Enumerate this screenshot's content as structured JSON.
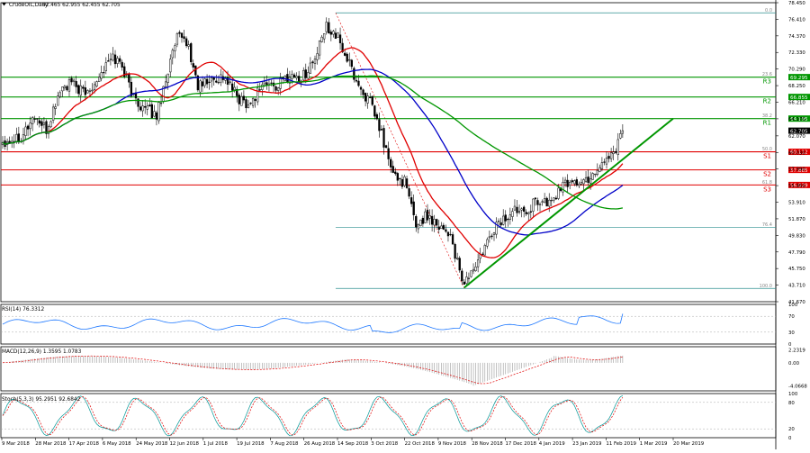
{
  "title": {
    "symbol": "CrudeOIL,Daily",
    "ohlc": "62.465 62.955 62.455 62.705"
  },
  "chart_data": [
    {
      "type": "candlestick",
      "panel": "price",
      "y_ticks": [
        "78.450",
        "76.410",
        "74.370",
        "72.330",
        "70.290",
        "68.250",
        "66.210",
        "64.170",
        "62.070",
        "60.030",
        "57.990",
        "55.950",
        "53.910",
        "51.870",
        "49.830",
        "47.790",
        "45.750",
        "43.710",
        "41.670"
      ],
      "ylim": [
        41.67,
        78.45
      ],
      "x_ticks": [
        "9 Mar 2018",
        "28 Mar 2018",
        "17 Apr 2018",
        "6 May 2018",
        "24 May 2018",
        "12 Jun 2018",
        "1 Jul 2018",
        "19 Jul 2018",
        "7 Aug 2018",
        "26 Aug 2018",
        "14 Sep 2018",
        "3 Oct 2018",
        "22 Oct 2018",
        "9 Nov 2018",
        "28 Nov 2018",
        "17 Dec 2018",
        "4 Jan 2019",
        "23 Jan 2019",
        "11 Feb 2019",
        "1 Mar 2019",
        "20 Mar 2019"
      ],
      "last_price": {
        "label": "62.705",
        "value": 62.705
      },
      "anchors": [
        {
          "x": 0,
          "v": 61.4
        },
        {
          "x": 8,
          "v": 62.1
        },
        {
          "x": 14,
          "v": 64.5
        },
        {
          "x": 19,
          "v": 62.6
        },
        {
          "x": 25,
          "v": 67.7
        },
        {
          "x": 30,
          "v": 68.5
        },
        {
          "x": 36,
          "v": 67.2
        },
        {
          "x": 42,
          "v": 69.5
        },
        {
          "x": 48,
          "v": 71.8
        },
        {
          "x": 52,
          "v": 70.8
        },
        {
          "x": 57,
          "v": 66.8
        },
        {
          "x": 62,
          "v": 65.3
        },
        {
          "x": 67,
          "v": 64.6
        },
        {
          "x": 72,
          "v": 70.2
        },
        {
          "x": 76,
          "v": 74.0
        },
        {
          "x": 80,
          "v": 73.8
        },
        {
          "x": 85,
          "v": 68.2
        },
        {
          "x": 90,
          "v": 68.8
        },
        {
          "x": 96,
          "v": 69.4
        },
        {
          "x": 103,
          "v": 66.6
        },
        {
          "x": 108,
          "v": 66.0
        },
        {
          "x": 113,
          "v": 68.6
        },
        {
          "x": 119,
          "v": 68.1
        },
        {
          "x": 125,
          "v": 69.6
        },
        {
          "x": 130,
          "v": 69.1
        },
        {
          "x": 136,
          "v": 71.5
        },
        {
          "x": 141,
          "v": 75.6
        },
        {
          "x": 145,
          "v": 74.6
        },
        {
          "x": 150,
          "v": 71.5
        },
        {
          "x": 155,
          "v": 68.2
        },
        {
          "x": 160,
          "v": 66.1
        },
        {
          "x": 165,
          "v": 62.2
        },
        {
          "x": 170,
          "v": 57.2
        },
        {
          "x": 175,
          "v": 56.4
        },
        {
          "x": 180,
          "v": 51.2
        },
        {
          "x": 185,
          "v": 52.3
        },
        {
          "x": 190,
          "v": 51.2
        },
        {
          "x": 195,
          "v": 49.9
        },
        {
          "x": 200,
          "v": 43.9
        },
        {
          "x": 203,
          "v": 44.8
        },
        {
          "x": 207,
          "v": 46.5
        },
        {
          "x": 210,
          "v": 48.2
        },
        {
          "x": 215,
          "v": 51.2
        },
        {
          "x": 220,
          "v": 52.1
        },
        {
          "x": 225,
          "v": 53.4
        },
        {
          "x": 229,
          "v": 53.1
        },
        {
          "x": 233,
          "v": 54.2
        },
        {
          "x": 238,
          "v": 53.7
        },
        {
          "x": 243,
          "v": 55.6
        },
        {
          "x": 248,
          "v": 56.7
        },
        {
          "x": 252,
          "v": 56.1
        },
        {
          "x": 257,
          "v": 57.4
        },
        {
          "x": 262,
          "v": 59.1
        },
        {
          "x": 266,
          "v": 60.1
        },
        {
          "x": 270,
          "v": 62.7
        }
      ],
      "moving_averages": [
        {
          "color": "#e00000",
          "period": 20
        },
        {
          "color": "#0000c8",
          "period": 50
        },
        {
          "color": "#009600",
          "period": 100
        }
      ],
      "horizontal_levels": [
        {
          "value": 77.2,
          "color": "#2f8f8f",
          "tag": "",
          "marker": "0.0"
        },
        {
          "value": 69.295,
          "color": "#009600",
          "tag": "69.295",
          "label": "R3",
          "marker": "23.6"
        },
        {
          "value": 66.855,
          "color": "#009600",
          "tag": "66.855",
          "label": "R2",
          "marker": ""
        },
        {
          "value": 64.195,
          "color": "#009600",
          "tag": "64.195",
          "label": "R1",
          "marker": "38.2"
        },
        {
          "value": 60.112,
          "color": "#e00000",
          "tag": "60.112",
          "label": "S1",
          "marker": "50.0"
        },
        {
          "value": 57.885,
          "color": "#e00000",
          "tag": "57.885",
          "label": "S2",
          "marker": ""
        },
        {
          "value": 56.029,
          "color": "#e00000",
          "tag": "56.029",
          "label": "S3",
          "marker": "61.8"
        },
        {
          "value": 50.8,
          "color": "#2f8f8f",
          "tag": "",
          "marker": "76.4"
        },
        {
          "value": 43.3,
          "color": "#2f8f8f",
          "tag": "",
          "marker": "100.0"
        }
      ],
      "trendline": {
        "x1": 201,
        "v1": 43.4,
        "x2": 292,
        "v2": 64.2,
        "color": "#009600"
      }
    },
    {
      "type": "line",
      "panel": "rsi",
      "label": "RSI(14) 76.3312",
      "ylim": [
        0,
        100
      ],
      "y_ticks": [
        {
          "label": "100",
          "v": 100
        },
        {
          "label": "70",
          "v": 70
        },
        {
          "label": "30",
          "v": 30
        },
        {
          "label": "0",
          "v": 0
        }
      ],
      "color": "#1e78ff"
    },
    {
      "type": "line",
      "panel": "macd",
      "label": "MACD(12,26,9) 1.3595 1.0783",
      "ylim": [
        -4.9,
        2.8
      ],
      "y_ticks": [
        {
          "label": "2.2319",
          "v": 2.2319
        },
        {
          "label": "0.00",
          "v": 0
        },
        {
          "label": "-4.0668",
          "v": -4.0668
        }
      ],
      "color": "#e00000"
    },
    {
      "type": "line",
      "panel": "stoch",
      "label": "Stoch(5,3,3) 95.2951 92.6842",
      "ylim": [
        0,
        100
      ],
      "y_ticks": [
        {
          "label": "100",
          "v": 100
        },
        {
          "label": "80",
          "v": 80
        },
        {
          "label": "20",
          "v": 20
        },
        {
          "label": "0",
          "v": 0
        }
      ],
      "colors": [
        "#009696",
        "#e00000"
      ]
    }
  ]
}
